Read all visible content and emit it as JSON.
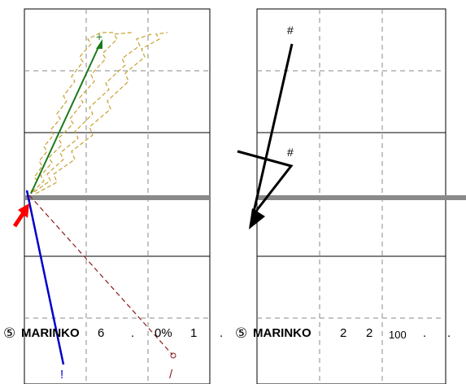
{
  "panels": [
    {
      "name": "left",
      "markers": {
        "green_tip": "+",
        "blue_tip": "!",
        "dark_red_tip": "/"
      },
      "label": {
        "num": "⑤",
        "name": "MARINKO",
        "v1": "6",
        "v2": ".",
        "v3": "0%",
        "v4": "1",
        "v5": "."
      }
    },
    {
      "name": "right",
      "markers": {
        "top_tip": "#",
        "mid_tip": "#"
      },
      "label": {
        "num": "⑤",
        "name": "MARINKO",
        "v1": "2",
        "v2": "2",
        "v3": "100",
        "v4": ".",
        "v5": "."
      }
    }
  ],
  "colors": {
    "green": "#1a7a1a",
    "blue": "#0000cc",
    "dark_red": "#8b1a1a",
    "gold": "#c8a030",
    "red_arrow": "#ff0000",
    "baseline": "#8a8a8a"
  }
}
